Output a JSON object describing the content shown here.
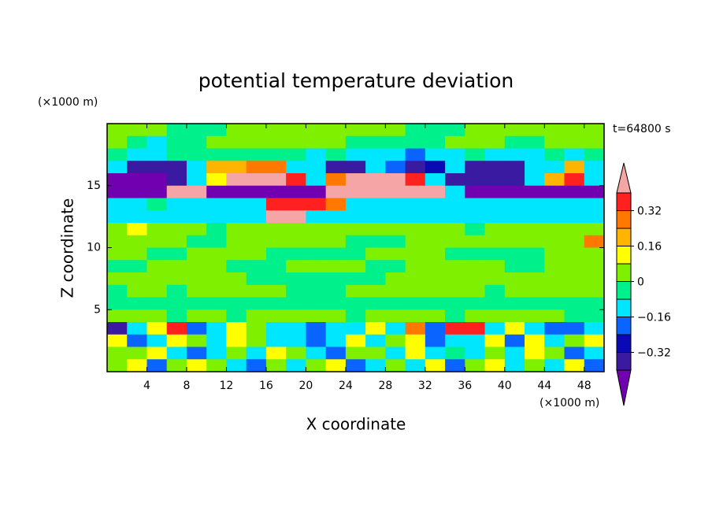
{
  "chart_data": {
    "type": "contour",
    "title": "potential temperature deviation",
    "x_label": "X coordinate",
    "y_label": "Z coordinate",
    "x_unit": "(×1000 m)",
    "y_unit": "(×1000 m)",
    "annotation": "t=64800 s",
    "xlim": [
      0,
      50
    ],
    "ylim": [
      0,
      20
    ],
    "xticks": [
      4,
      8,
      12,
      16,
      20,
      24,
      28,
      32,
      36,
      40,
      44,
      48
    ],
    "yticks": [
      5,
      10,
      15
    ],
    "x": [
      1,
      3,
      5,
      7,
      9,
      11,
      13,
      15,
      17,
      19,
      21,
      23,
      25,
      27,
      29,
      31,
      33,
      35,
      37,
      39,
      41,
      43,
      45,
      47,
      49
    ],
    "y": [
      19.5,
      18.5,
      17.5,
      16.5,
      15.5,
      14.5,
      13.5,
      12.5,
      11.5,
      10.5,
      9.5,
      8.5,
      7.5,
      6.5,
      5.5,
      4.5,
      3.5,
      2.5,
      1.5,
      0.5
    ],
    "values": [
      [
        0.04,
        0.04,
        0.04,
        -0.04,
        -0.04,
        -0.04,
        0.04,
        0.04,
        0.04,
        0.04,
        0.04,
        0.04,
        0.04,
        0.04,
        0.04,
        -0.04,
        -0.04,
        -0.04,
        0.04,
        0.04,
        0.04,
        0.04,
        0.04,
        0.04,
        0.04
      ],
      [
        0.04,
        -0.04,
        -0.12,
        -0.04,
        -0.04,
        0.04,
        0.04,
        0.04,
        0.04,
        0.04,
        0.04,
        0.04,
        -0.04,
        -0.04,
        -0.04,
        -0.04,
        -0.04,
        0.04,
        0.04,
        0.04,
        -0.04,
        -0.04,
        0.04,
        0.04,
        0.04
      ],
      [
        -0.04,
        -0.12,
        -0.12,
        -0.04,
        -0.04,
        -0.04,
        -0.04,
        -0.04,
        -0.04,
        -0.04,
        -0.12,
        -0.04,
        -0.12,
        -0.12,
        -0.12,
        -0.2,
        -0.12,
        -0.12,
        -0.04,
        -0.12,
        -0.12,
        -0.12,
        -0.04,
        -0.12,
        -0.04
      ],
      [
        -0.12,
        -0.36,
        -0.36,
        -0.36,
        -0.12,
        0.2,
        0.2,
        0.28,
        0.28,
        -0.12,
        -0.12,
        -0.36,
        -0.36,
        -0.12,
        -0.2,
        -0.36,
        -0.28,
        -0.12,
        -0.36,
        -0.36,
        -0.36,
        -0.12,
        -0.12,
        0.2,
        -0.12
      ],
      [
        -0.5,
        -0.5,
        -0.5,
        -0.36,
        -0.12,
        0.12,
        0.5,
        0.5,
        0.5,
        0.36,
        -0.12,
        0.28,
        0.5,
        0.5,
        0.5,
        0.36,
        -0.12,
        -0.36,
        -0.36,
        -0.36,
        -0.36,
        -0.12,
        0.2,
        0.36,
        -0.12
      ],
      [
        -0.5,
        -0.5,
        -0.5,
        0.5,
        0.5,
        -0.5,
        -0.5,
        -0.5,
        -0.5,
        -0.5,
        -0.5,
        0.5,
        0.5,
        0.5,
        0.5,
        0.5,
        0.5,
        -0.12,
        -0.5,
        -0.5,
        -0.5,
        -0.5,
        -0.5,
        -0.5,
        -0.5
      ],
      [
        -0.12,
        -0.12,
        -0.04,
        -0.12,
        -0.12,
        -0.12,
        -0.12,
        -0.12,
        0.36,
        0.36,
        0.36,
        0.28,
        -0.12,
        -0.12,
        -0.12,
        -0.12,
        -0.12,
        -0.12,
        -0.12,
        -0.12,
        -0.12,
        -0.12,
        -0.12,
        -0.12,
        -0.12
      ],
      [
        -0.12,
        -0.12,
        -0.12,
        -0.12,
        -0.12,
        -0.12,
        -0.12,
        -0.12,
        0.5,
        0.5,
        -0.12,
        -0.12,
        -0.12,
        -0.12,
        -0.12,
        -0.12,
        -0.12,
        -0.12,
        -0.12,
        -0.12,
        -0.12,
        -0.12,
        -0.12,
        -0.12,
        -0.12
      ],
      [
        0.04,
        0.12,
        0.04,
        0.04,
        0.04,
        -0.04,
        0.04,
        0.04,
        0.04,
        0.04,
        0.04,
        0.04,
        0.04,
        0.04,
        0.04,
        0.04,
        0.04,
        0.04,
        -0.04,
        0.04,
        0.04,
        0.04,
        0.04,
        0.04,
        0.04
      ],
      [
        0.04,
        0.04,
        0.04,
        0.04,
        -0.04,
        -0.04,
        0.04,
        0.04,
        0.04,
        0.04,
        0.04,
        0.04,
        -0.04,
        -0.04,
        -0.04,
        0.04,
        0.04,
        0.04,
        0.04,
        0.04,
        0.04,
        0.04,
        0.04,
        0.04,
        0.28
      ],
      [
        0.04,
        0.04,
        -0.04,
        -0.04,
        0.04,
        0.04,
        0.04,
        0.04,
        -0.04,
        -0.04,
        -0.04,
        -0.04,
        -0.04,
        0.04,
        0.04,
        0.04,
        0.04,
        -0.04,
        -0.04,
        -0.04,
        -0.04,
        -0.04,
        0.04,
        0.04,
        0.04
      ],
      [
        -0.04,
        -0.04,
        0.04,
        0.04,
        0.04,
        0.04,
        -0.04,
        -0.04,
        -0.04,
        0.04,
        0.04,
        0.04,
        0.04,
        -0.04,
        -0.04,
        0.04,
        0.04,
        0.04,
        0.04,
        0.04,
        -0.04,
        -0.04,
        0.04,
        0.04,
        0.04
      ],
      [
        0.04,
        0.04,
        0.04,
        0.04,
        0.04,
        0.04,
        0.04,
        -0.04,
        -0.04,
        -0.04,
        -0.04,
        -0.04,
        -0.04,
        -0.04,
        0.04,
        0.04,
        0.04,
        0.04,
        0.04,
        0.04,
        0.04,
        0.04,
        0.04,
        0.04,
        0.04
      ],
      [
        -0.04,
        0.04,
        0.04,
        -0.04,
        0.04,
        0.04,
        0.04,
        0.04,
        0.04,
        -0.04,
        -0.04,
        -0.04,
        0.04,
        0.04,
        0.04,
        0.04,
        0.04,
        0.04,
        0.04,
        -0.04,
        0.04,
        0.04,
        0.04,
        0.04,
        0.04
      ],
      [
        -0.04,
        -0.04,
        -0.04,
        -0.04,
        -0.04,
        -0.04,
        -0.04,
        -0.04,
        -0.04,
        -0.04,
        -0.04,
        -0.04,
        -0.04,
        -0.04,
        -0.04,
        -0.04,
        -0.04,
        -0.04,
        -0.04,
        -0.04,
        -0.04,
        -0.04,
        -0.04,
        -0.04,
        -0.04
      ],
      [
        0.04,
        0.04,
        0.04,
        -0.04,
        0.04,
        0.04,
        -0.04,
        0.04,
        0.04,
        0.04,
        0.04,
        0.04,
        -0.04,
        0.04,
        0.04,
        0.04,
        0.04,
        -0.04,
        0.04,
        0.04,
        0.04,
        0.04,
        0.04,
        -0.04,
        -0.04
      ],
      [
        -0.36,
        -0.12,
        0.12,
        0.36,
        -0.2,
        -0.12,
        0.12,
        0.04,
        -0.12,
        -0.12,
        -0.2,
        -0.12,
        -0.12,
        0.12,
        -0.12,
        0.28,
        -0.2,
        0.36,
        0.36,
        -0.12,
        0.12,
        -0.12,
        -0.2,
        -0.2,
        -0.12
      ],
      [
        0.12,
        -0.2,
        -0.12,
        0.12,
        0.04,
        -0.12,
        0.12,
        0.04,
        -0.12,
        -0.12,
        -0.2,
        -0.12,
        0.12,
        -0.12,
        0.04,
        0.12,
        -0.2,
        -0.12,
        -0.12,
        0.12,
        -0.2,
        0.12,
        -0.12,
        0.04,
        0.12
      ],
      [
        0.04,
        0.04,
        0.12,
        -0.12,
        -0.2,
        -0.12,
        0.04,
        -0.12,
        0.12,
        0.04,
        -0.12,
        -0.2,
        0.04,
        0.04,
        -0.12,
        0.12,
        -0.12,
        -0.04,
        -0.12,
        0.04,
        -0.12,
        0.12,
        0.04,
        -0.2,
        -0.12
      ],
      [
        0.04,
        0.12,
        -0.2,
        0.04,
        0.12,
        0.04,
        -0.12,
        -0.2,
        0.04,
        -0.12,
        0.04,
        0.12,
        -0.2,
        -0.12,
        0.04,
        -0.12,
        0.12,
        -0.2,
        0.04,
        0.12,
        -0.12,
        0.04,
        -0.12,
        0.12,
        -0.2
      ]
    ],
    "levels": [
      -0.4,
      -0.32,
      -0.24,
      -0.16,
      -0.08,
      0,
      0.08,
      0.16,
      0.24,
      0.32,
      0.4
    ],
    "colors": [
      "#7000b0",
      "#3a1aa0",
      "#0a0ab4",
      "#0a64ff",
      "#00e6ff",
      "#00f08c",
      "#7ef000",
      "#ffff00",
      "#ffb400",
      "#ff7800",
      "#ff2020",
      "#f5a5a5"
    ],
    "colorbar_ticks": [
      0.32,
      0.16,
      0,
      {
        "value": -0.16,
        "label": "−0.16"
      },
      {
        "value": -0.32,
        "label": "−0.32"
      }
    ]
  }
}
